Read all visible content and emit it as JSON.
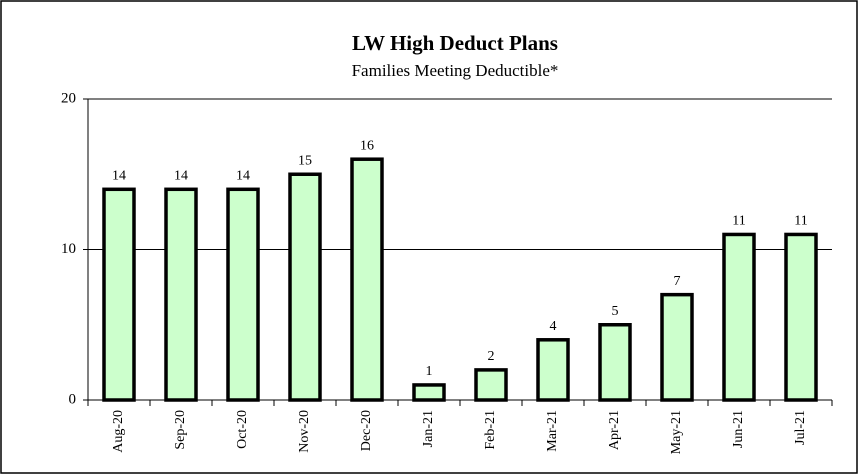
{
  "chart_data": {
    "type": "bar",
    "title": "LW High Deduct Plans",
    "subtitle": "Families Meeting Deductible*",
    "categories": [
      "Aug-20",
      "Sep-20",
      "Oct-20",
      "Nov-20",
      "Dec-20",
      "Jan-21",
      "Feb-21",
      "Mar-21",
      "Apr-21",
      "May-21",
      "Jun-21",
      "Jul-21"
    ],
    "values": [
      14,
      14,
      14,
      15,
      16,
      1,
      2,
      4,
      5,
      7,
      11,
      11
    ],
    "color": "#ccffcc",
    "ylim": [
      0,
      20
    ],
    "yticks": [
      0,
      10,
      20
    ],
    "grid": true
  }
}
